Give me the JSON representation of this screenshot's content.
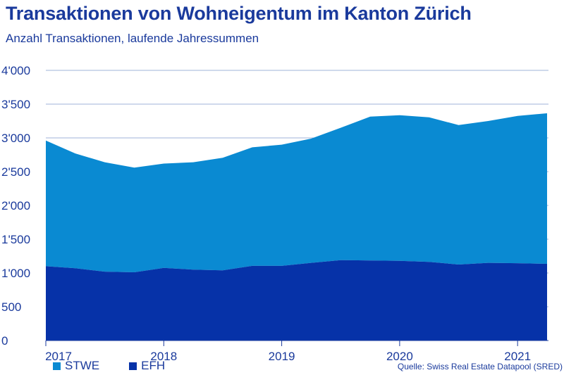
{
  "title": "Transaktionen von Wohneigentum im Kanton Zürich",
  "subtitle": "Anzahl Transaktionen, laufende Jahressummen",
  "source": "Quelle:  Swiss Real Estate Datapool (SRED)",
  "colors": {
    "stwe": "#0a8ad2",
    "efh": "#0632a8",
    "grid": "#9fb3d9",
    "text": "#1a3a9c"
  },
  "chart_data": {
    "type": "area",
    "stacked": true,
    "title": "Transaktionen von Wohneigentum im Kanton Zürich",
    "subtitle": "Anzahl Transaktionen, laufende Jahressummen",
    "x": [
      2017.0,
      2017.25,
      2017.5,
      2017.75,
      2018.0,
      2018.25,
      2018.5,
      2018.75,
      2019.0,
      2019.25,
      2019.5,
      2019.75,
      2020.0,
      2020.25,
      2020.5,
      2020.75,
      2021.0,
      2021.25
    ],
    "xticks": [
      2017,
      2018,
      2019,
      2020,
      2021
    ],
    "xtick_labels": [
      "2017",
      "2018",
      "2019",
      "2020",
      "2021"
    ],
    "xlim": [
      2017.0,
      2021.25
    ],
    "ylim": [
      0,
      4000
    ],
    "yticks": [
      0,
      500,
      1000,
      1500,
      2000,
      2500,
      3000,
      3500,
      4000
    ],
    "ytick_labels": [
      "0",
      "500",
      "1'000",
      "1'500",
      "2'000",
      "2'500",
      "3'000",
      "3'500",
      "4'000"
    ],
    "grid": true,
    "legend": "bottom-left",
    "series": [
      {
        "name": "EFH",
        "values": [
          1100,
          1070,
          1020,
          1010,
          1075,
          1050,
          1040,
          1105,
          1105,
          1150,
          1190,
          1185,
          1180,
          1165,
          1125,
          1150,
          1145,
          1135
        ]
      },
      {
        "name": "STWE",
        "values": [
          1860,
          1700,
          1620,
          1550,
          1545,
          1590,
          1665,
          1755,
          1795,
          1840,
          1960,
          2130,
          2155,
          2140,
          2065,
          2100,
          2180,
          2230
        ]
      }
    ]
  }
}
